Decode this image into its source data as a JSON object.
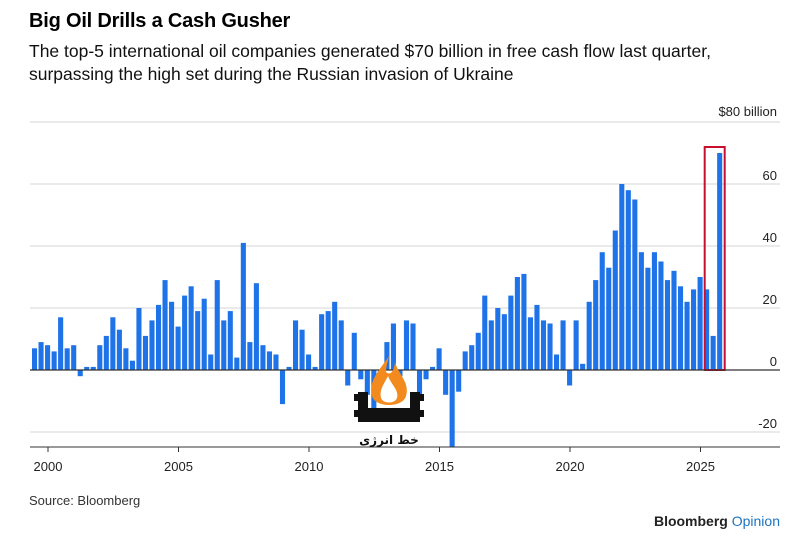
{
  "header": {
    "title": "Big Oil Drills a Cash Gusher",
    "subtitle": "The top-5 international oil companies generated $70 billion in free cash flow last quarter, surpassing the high set during the Russian invasion of Ukraine"
  },
  "footer": {
    "source": "Source: Bloomberg",
    "brand_main": "Bloomberg",
    "brand_accent": "Opinion"
  },
  "watermark": {
    "text": "خط انرژی"
  },
  "colors": {
    "bar": "#1e73e8",
    "highlight": "#c8102e",
    "grid": "#d4d4d4",
    "axis": "#333333",
    "brand_accent": "#1e73be"
  },
  "chart_data": {
    "type": "bar",
    "unit_label": "$80 billion",
    "ylim": [
      -25,
      80
    ],
    "yticks": [
      -20,
      0,
      20,
      40,
      60,
      80
    ],
    "ytick_labels": [
      "-20",
      "0",
      "20",
      "40",
      "60",
      "$80 billion"
    ],
    "x_start": 2000.0,
    "x_step": 0.25,
    "xticks": [
      2000,
      2005,
      2010,
      2015,
      2020,
      2025
    ],
    "xtick_labels": [
      "2000",
      "2005",
      "2010",
      "2015",
      "2020",
      "2025"
    ],
    "grid": true,
    "highlight_index": 105,
    "values": [
      7,
      9,
      8,
      6,
      17,
      7,
      8,
      -2,
      1,
      1,
      8,
      11,
      17,
      13,
      7,
      3,
      20,
      11,
      16,
      21,
      29,
      22,
      14,
      24,
      27,
      19,
      23,
      5,
      29,
      16,
      19,
      4,
      41,
      9,
      28,
      8,
      6,
      5,
      -11,
      1,
      16,
      13,
      5,
      1,
      18,
      19,
      22,
      16,
      -5,
      12,
      -3,
      -8,
      -15,
      -4,
      9,
      15,
      -2,
      16,
      15,
      -10,
      -3,
      1,
      7,
      -8,
      -25,
      -7,
      6,
      8,
      12,
      24,
      16,
      20,
      18,
      24,
      30,
      31,
      17,
      21,
      16,
      15,
      5,
      16,
      -5,
      16,
      2,
      22,
      29,
      38,
      33,
      45,
      60,
      58,
      55,
      38,
      33,
      38,
      35,
      29,
      32,
      27,
      22,
      26,
      30,
      26,
      11,
      70
    ]
  }
}
